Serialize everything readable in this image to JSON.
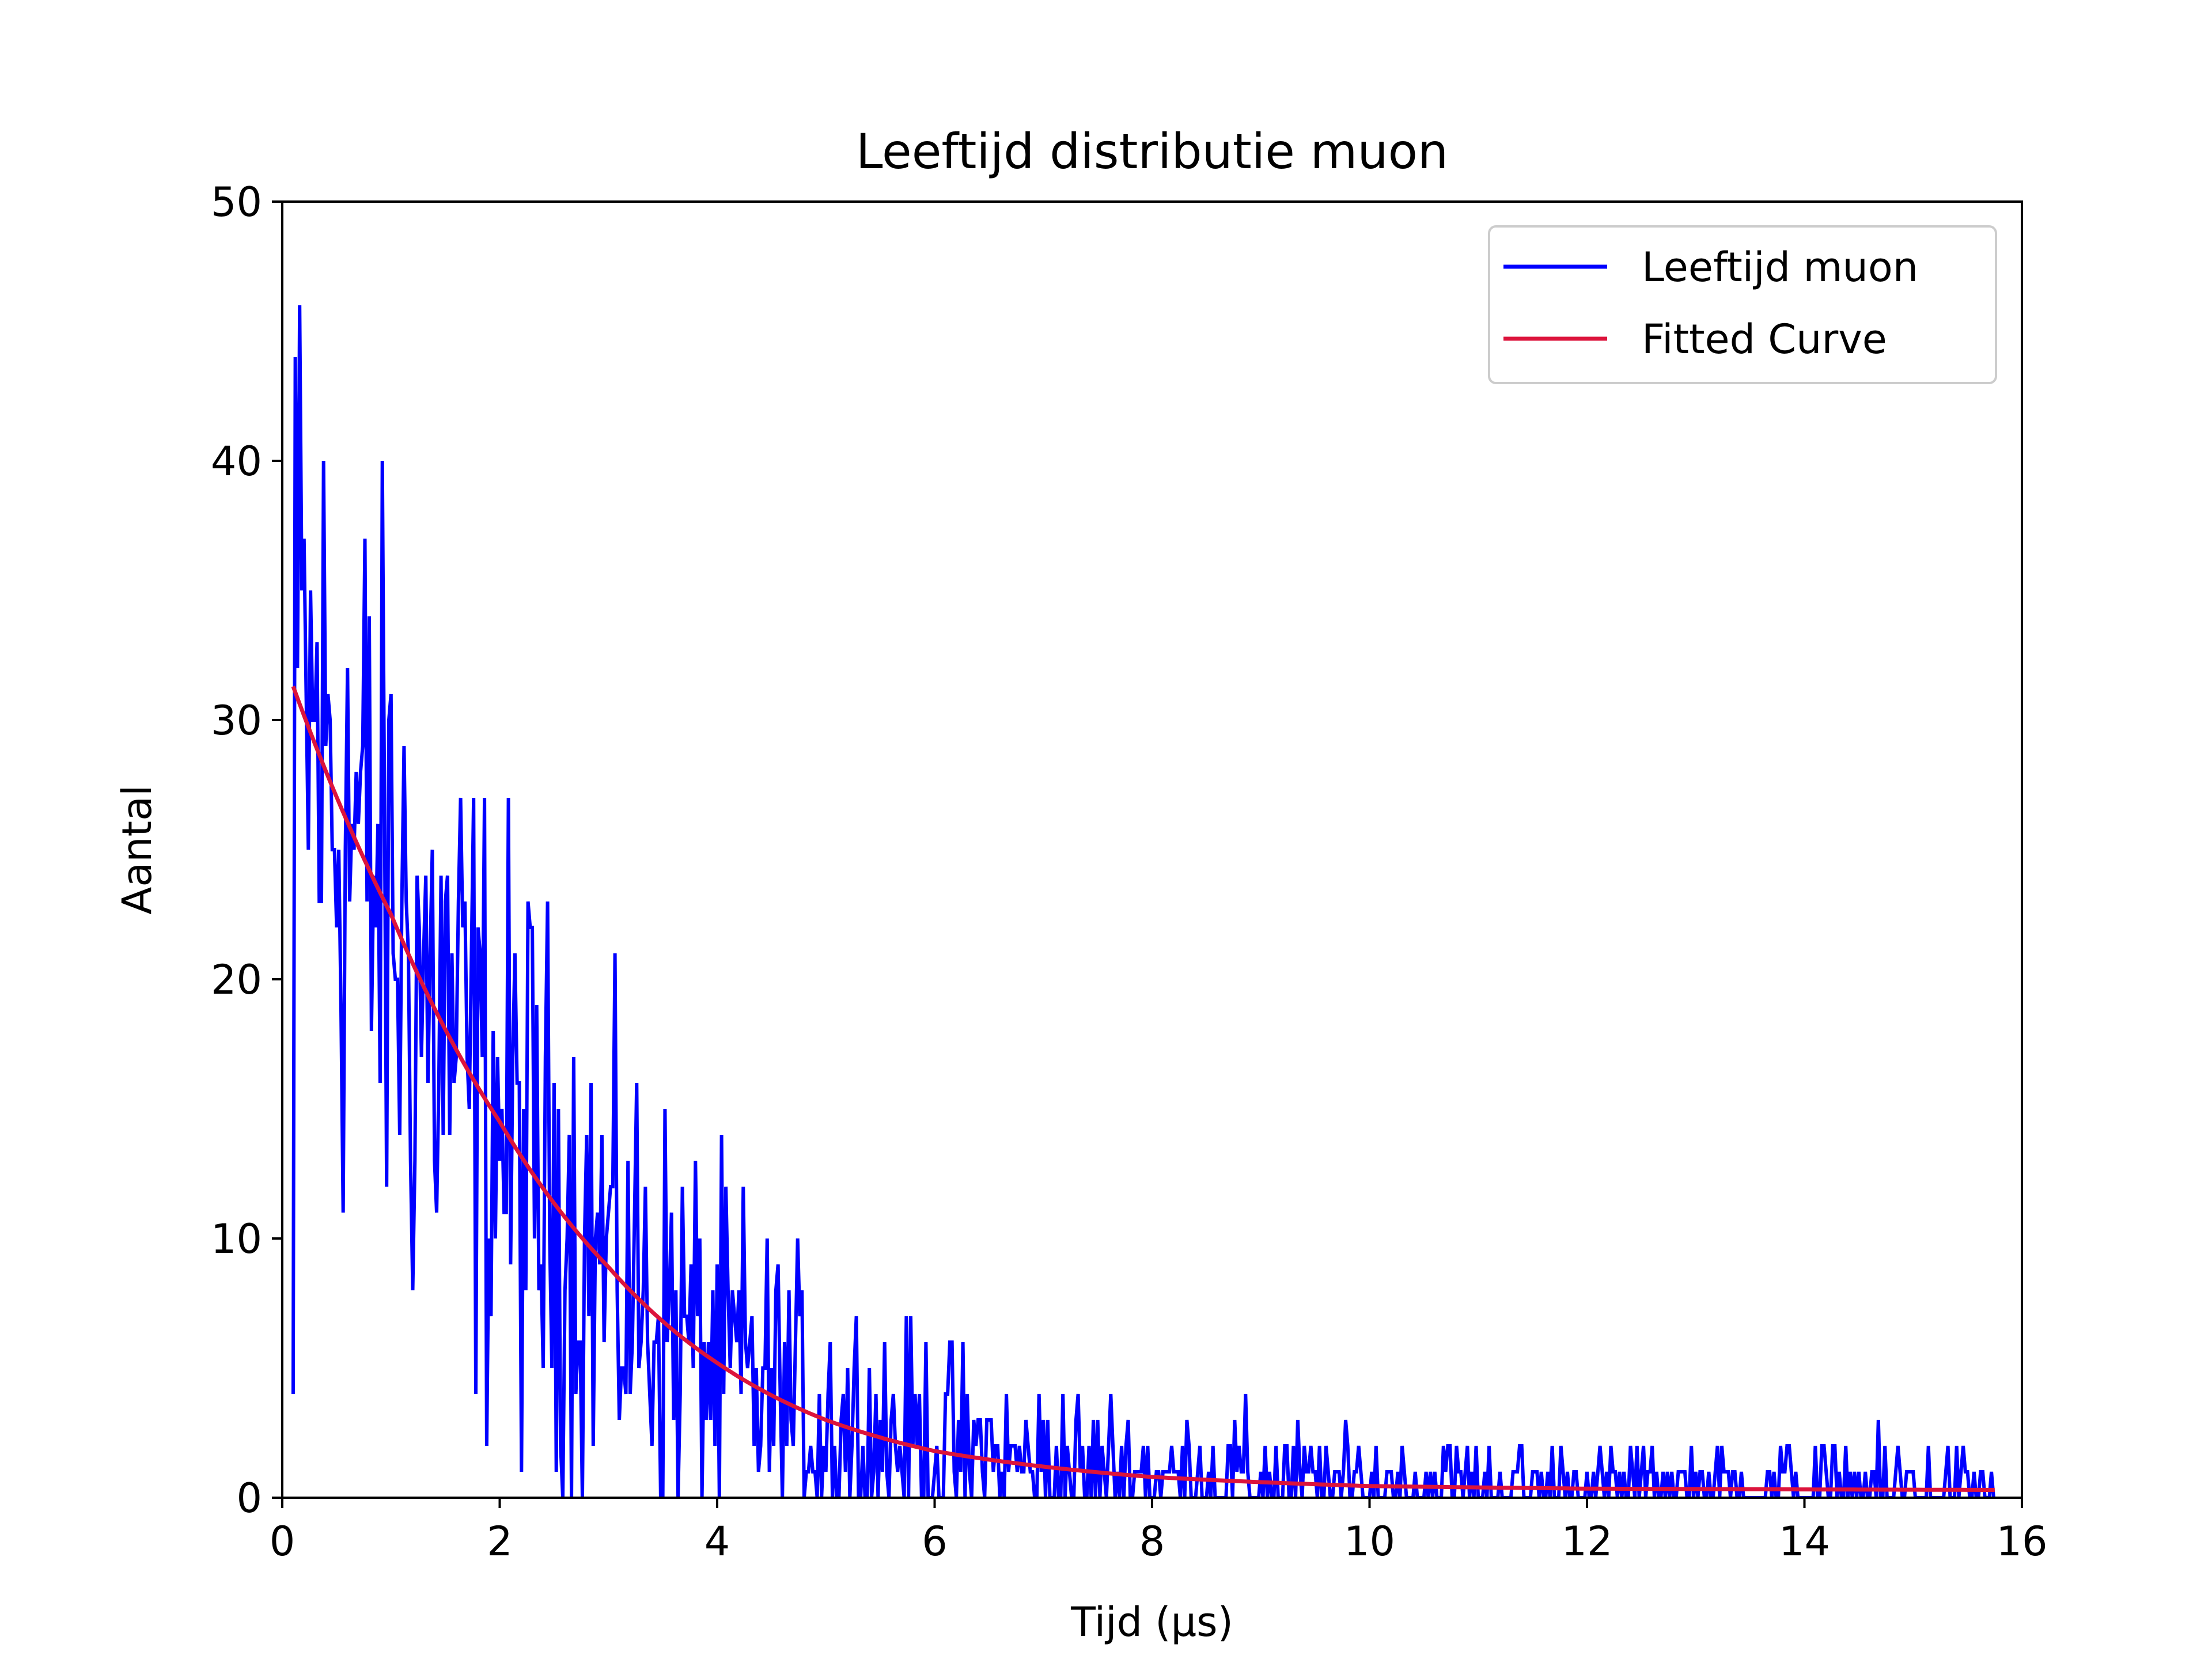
{
  "chart_data": {
    "type": "line",
    "title": "Leeftijd distributie muon",
    "xlabel": "Tijd (μs)",
    "ylabel": "Aantal",
    "xlim": [
      0,
      16
    ],
    "ylim": [
      0,
      50
    ],
    "xticks": [
      0,
      2,
      4,
      6,
      8,
      10,
      12,
      14,
      16
    ],
    "yticks": [
      0,
      10,
      20,
      30,
      40,
      50
    ],
    "grid": false,
    "legend_position": "top-right",
    "series": [
      {
        "name": "Leeftijd muon",
        "color": "#0000ff",
        "style": "noisy histogram counts following an exponential decay",
        "x_range": [
          0.1,
          15.75
        ],
        "x_step": 0.02,
        "peak": {
          "x": 0.12,
          "y": 44
        },
        "first_point": {
          "x": 0.1,
          "y": 4
        }
      },
      {
        "name": "Fitted Curve",
        "color": "#dc143c",
        "model": "exponential decay",
        "x_range": [
          0.1,
          15.75
        ],
        "points": [
          [
            0.1,
            31.3
          ],
          [
            1,
            22.5
          ],
          [
            2,
            14.5
          ],
          [
            3,
            8.9
          ],
          [
            4,
            5.2
          ],
          [
            5,
            3.0
          ],
          [
            6,
            1.8
          ],
          [
            8,
            0.8
          ],
          [
            10,
            0.45
          ],
          [
            12,
            0.35
          ],
          [
            14,
            0.32
          ],
          [
            15.75,
            0.3
          ]
        ]
      }
    ]
  }
}
